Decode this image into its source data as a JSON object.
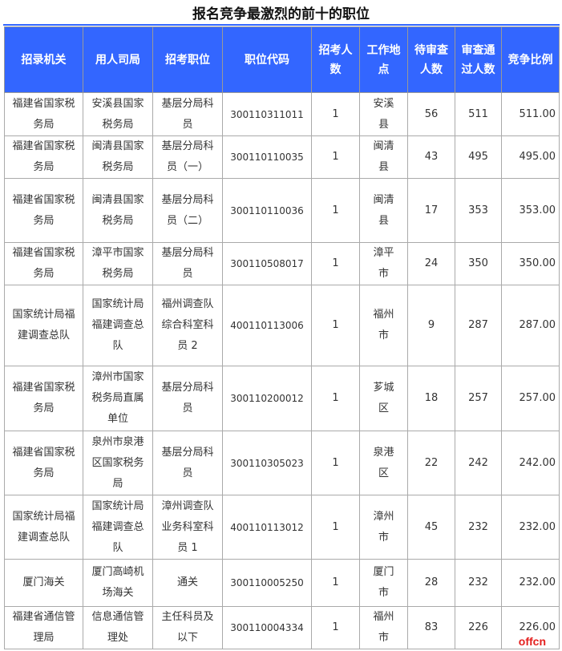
{
  "title": "报名竞争最激烈的前十的职位",
  "headers": [
    "招录机关",
    "用人司局",
    "招考职位",
    "职位代码",
    "招考人数",
    "工作地点",
    "待审查人数",
    "审查通过人数",
    "竞争比例"
  ],
  "rows": [
    [
      "福建省国家税务局",
      "安溪县国家税务局",
      "基层分局科员",
      "300110311011",
      "1",
      "安溪县",
      "56",
      "511",
      "511.00"
    ],
    [
      "福建省国家税务局",
      "闽清县国家税务局",
      "基层分局科员（一）",
      "300110110035",
      "1",
      "闽清县",
      "43",
      "495",
      "495.00"
    ],
    [
      "福建省国家税务局",
      "闽清县国家税务局",
      "基层分局科员（二）",
      "300110110036",
      "1",
      "闽清县",
      "17",
      "353",
      "353.00"
    ],
    [
      "福建省国家税务局",
      "漳平市国家税务局",
      "基层分局科员",
      "300110508017",
      "1",
      "漳平市",
      "24",
      "350",
      "350.00"
    ],
    [
      "国家统计局福建调查总队",
      "国家统计局福建调查总队",
      "福州调查队综合科室科员 2",
      "400110113006",
      "1",
      "福州市",
      "9",
      "287",
      "287.00"
    ],
    [
      "福建省国家税务局",
      "漳州市国家税务局直属单位",
      "基层分局科员",
      "300110200012",
      "1",
      "芗城区",
      "18",
      "257",
      "257.00"
    ],
    [
      "福建省国家税务局",
      "泉州市泉港区国家税务局",
      "基层分局科员",
      "300110305023",
      "1",
      "泉港区",
      "22",
      "242",
      "242.00"
    ],
    [
      "国家统计局福建调查总队",
      "国家统计局福建调查总队",
      "漳州调查队业务科室科员 1",
      "400110113012",
      "1",
      "漳州市",
      "45",
      "232",
      "232.00"
    ],
    [
      "厦门海关",
      "厦门高崎机场海关",
      "通关",
      "300110005250",
      "1",
      "厦门市",
      "28",
      "232",
      "232.00"
    ],
    [
      "福建省通信管理局",
      "信息通信管理处",
      "主任科员及以下",
      "300110004334",
      "1",
      "福州市",
      "83",
      "226",
      "226.00"
    ]
  ],
  "watermark": "offcn"
}
